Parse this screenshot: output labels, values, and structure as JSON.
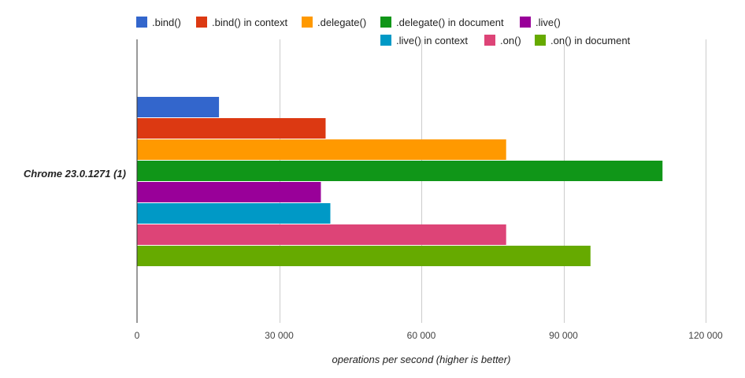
{
  "chart_data": {
    "type": "bar",
    "orientation": "horizontal",
    "categories": [
      "Chrome 23.0.1271 (1)"
    ],
    "series": [
      {
        "name": ".bind()",
        "color": "#3366cc",
        "values": [
          17300
        ]
      },
      {
        "name": ".bind() in context",
        "color": "#dc3912",
        "values": [
          39800
        ]
      },
      {
        "name": ".delegate()",
        "color": "#ff9900",
        "values": [
          77900
        ]
      },
      {
        "name": ".delegate() in document",
        "color": "#109618",
        "values": [
          110900
        ]
      },
      {
        "name": ".live()",
        "color": "#990099",
        "values": [
          38800
        ]
      },
      {
        "name": ".live() in context",
        "color": "#0099c6",
        "values": [
          40800
        ]
      },
      {
        "name": ".on()",
        "color": "#dd4477",
        "values": [
          77900
        ]
      },
      {
        "name": ".on() in document",
        "color": "#66aa00",
        "values": [
          95700
        ]
      }
    ],
    "xlabel": "operations per second (higher is better)",
    "ylabel": "",
    "xlim": [
      0,
      120000
    ],
    "xticks": [
      0,
      30000,
      60000,
      90000,
      120000
    ],
    "xtick_labels": [
      "0",
      "30 000",
      "60 000",
      "90 000",
      "120 000"
    ],
    "grid": true,
    "legend_position": "top"
  }
}
